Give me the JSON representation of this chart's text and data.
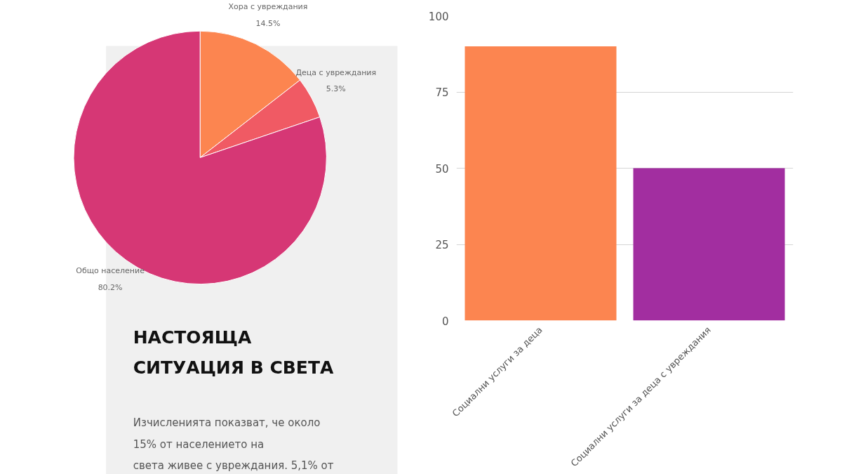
{
  "chart_data": [
    {
      "type": "pie",
      "title": "НАСТОЯЩА\nСИТУАЦИЯ В СВЕТА",
      "categories": [
        "Хора с увреждания",
        "Деца с увреждания",
        "Общо население"
      ],
      "values": [
        14.5,
        5.3,
        80.2
      ],
      "colors": [
        "#fc8550",
        "#f05a64",
        "#d63775"
      ],
      "value_labels": [
        "14.5%",
        "5.3%",
        "80.2%"
      ],
      "annotations": [
        "Изчисленията показват, че около",
        "15% от населението на",
        "света живее с увреждания. 5,1% от"
      ]
    },
    {
      "type": "bar",
      "categories": [
        "Социални услуги за деца",
        "Социални услуги за деца с увреждания"
      ],
      "values": [
        90,
        50
      ],
      "colors": [
        "#fc8550",
        "#a22ea0"
      ],
      "ylim": [
        0,
        100
      ],
      "yticks": [
        0,
        25,
        50,
        75,
        100
      ],
      "grid": "y"
    }
  ]
}
